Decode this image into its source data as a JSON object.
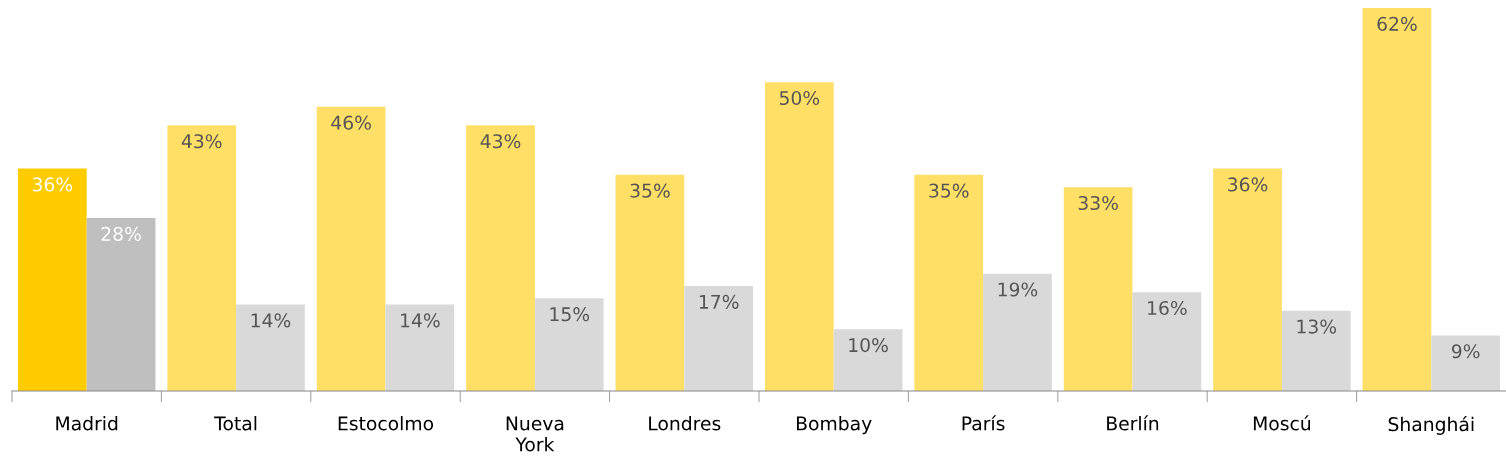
{
  "chart_data": {
    "type": "bar",
    "categories": [
      "Madrid",
      "Total",
      "Estocolmo",
      "Nueva York",
      "Londres",
      "Bombay",
      "París",
      "Berlín",
      "Moscú",
      "Shanghái"
    ],
    "series": [
      {
        "colors": [
          "#ffcc00",
          "#ffdf66",
          "#ffdf66",
          "#ffdf66",
          "#ffdf66",
          "#ffdf66",
          "#ffdf66",
          "#ffdf66",
          "#ffdf66",
          "#ffdf66"
        ],
        "values": [
          36,
          43,
          46,
          43,
          35,
          50,
          35,
          33,
          36,
          62
        ],
        "value_labels": [
          "36%",
          "43%",
          "46%",
          "43%",
          "35%",
          "50%",
          "35%",
          "33%",
          "36%",
          "62%"
        ]
      },
      {
        "colors": [
          "#bfbfbf",
          "#d9d9d9",
          "#d9d9d9",
          "#d9d9d9",
          "#d9d9d9",
          "#d9d9d9",
          "#d9d9d9",
          "#d9d9d9",
          "#d9d9d9",
          "#d9d9d9"
        ],
        "values": [
          28,
          14,
          14,
          15,
          17,
          10,
          19,
          16,
          13,
          9
        ],
        "value_labels": [
          "28%",
          "14%",
          "14%",
          "15%",
          "17%",
          "10%",
          "19%",
          "16%",
          "13%",
          "9%"
        ]
      }
    ],
    "grid": false,
    "legend": false
  }
}
